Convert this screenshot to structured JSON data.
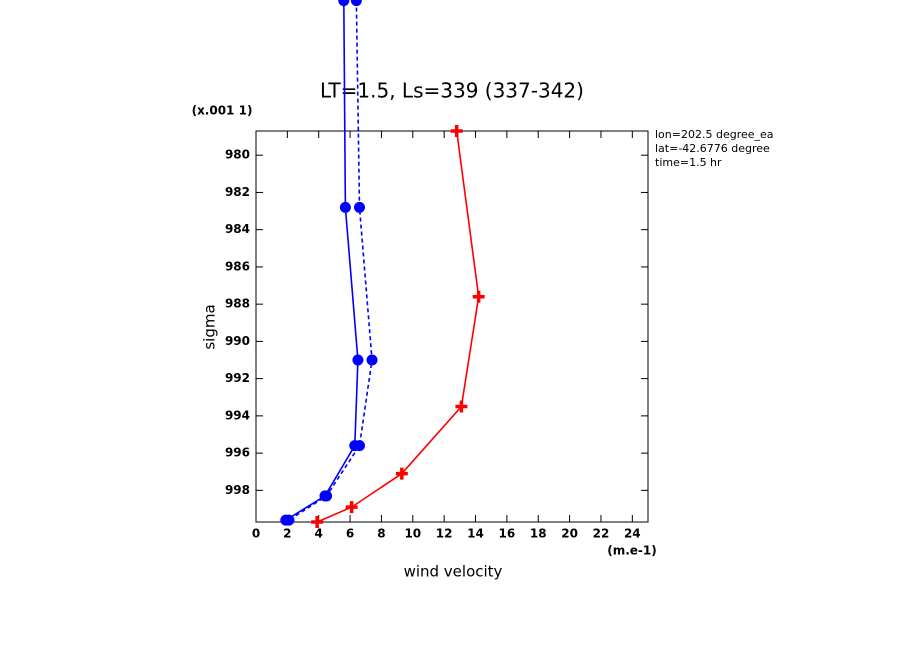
{
  "chart_data": {
    "type": "profile",
    "title": "LT=1.5, Ls=339 (337-342)",
    "x_label": "wind velocity",
    "x_units": "(m.e-1)",
    "y_label": "sigma",
    "y_scale_note": "(x.001 1)",
    "annotations": [
      "lon=202.5 degree_ea",
      "lat=-42.6776 degree",
      "time=1.5 hr"
    ],
    "xlim": [
      0,
      25
    ],
    "xticks": [
      0,
      2,
      4,
      6,
      8,
      10,
      12,
      14,
      16,
      18,
      20,
      22,
      24
    ],
    "ylim": [
      978.7,
      999.7
    ],
    "yticks": [
      980,
      982,
      984,
      986,
      988,
      990,
      992,
      994,
      996,
      998
    ],
    "y_inverted": true,
    "series": [
      {
        "color": "#ff0000",
        "dash": "solid",
        "marker": "plus",
        "x": [
          12.8,
          14.2,
          13.1,
          9.3,
          6.1,
          3.9
        ],
        "y": [
          978.7,
          987.6,
          993.5,
          997.1,
          998.9,
          999.7
        ]
      },
      {
        "color": "#0000ff",
        "dash": "solid",
        "marker": "circle",
        "x": [
          5.6,
          5.7,
          6.5,
          6.3,
          4.4,
          1.9
        ],
        "y": [
          971.7,
          982.8,
          991.0,
          995.6,
          998.3,
          999.6
        ]
      },
      {
        "color": "#0000ff",
        "dash": "dashed",
        "marker": "circle",
        "x": [
          6.4,
          6.6,
          7.4,
          6.6,
          4.5,
          2.1
        ],
        "y": [
          971.7,
          982.8,
          991.0,
          995.6,
          998.3,
          999.6
        ]
      }
    ]
  }
}
